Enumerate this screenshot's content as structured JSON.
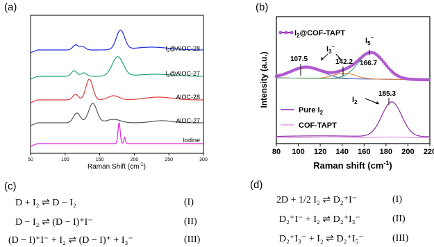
{
  "panels": {
    "a": {
      "label": "(a)",
      "xlabel": "Raman Shift (cm",
      "xlabel_sup": "-1",
      "xlabel_tail": ")",
      "xticks": [
        "50",
        "100",
        "150",
        "200",
        "250",
        "300"
      ],
      "series_labels": [
        {
          "text_pre": "I",
          "sub": "2",
          "text_post": "@AlOC-28",
          "color": "#1a2be0"
        },
        {
          "text_pre": "I",
          "sub": "2",
          "text_post": "@AlOC-27",
          "color": "#1fa86a"
        },
        {
          "text_pre": "AlOC-28",
          "sub": "",
          "text_post": "",
          "color": "#e03b3b"
        },
        {
          "text_pre": "AlOC-27",
          "sub": "",
          "text_post": "",
          "color": "#555555"
        },
        {
          "text_pre": "Iodine",
          "sub": "",
          "text_post": "",
          "color": "#e020e0"
        }
      ]
    },
    "b": {
      "label": "(b)",
      "ylabel": "Intensity (a.u.)",
      "xlabel": "Raman shift (cm",
      "xlabel_sup": "-1",
      "xlabel_tail": ")",
      "xticks": [
        "80",
        "100",
        "120",
        "140",
        "160",
        "180",
        "200",
        "220"
      ],
      "legend_top": {
        "pre": "I",
        "sub": "2",
        "post": "@COF-TAPT"
      },
      "legend_bottom": [
        {
          "pre": "Pure I",
          "sub": "2",
          "post": ""
        },
        {
          "pre": "COF-TAPT",
          "sub": "",
          "post": ""
        }
      ],
      "peaks": {
        "p1": "107.5",
        "p2": "142.2",
        "p3": "166.7",
        "p4": "185.3"
      },
      "peak_tags": {
        "i3": {
          "pre": "I",
          "sub": "3",
          "sup": "−"
        },
        "i5": {
          "pre": "I",
          "sub": "5",
          "sup": "−"
        },
        "i2": {
          "pre": "I",
          "sub": "2",
          "sup": ""
        }
      }
    },
    "c": {
      "label": "(c)",
      "equations": [
        {
          "lhs": "D + I₂",
          "rhs": "D − I₂",
          "num": "(I)"
        },
        {
          "lhs": "D − I₂",
          "rhs": "(D − I)⁺I⁻",
          "num": "(II)"
        },
        {
          "lhs": "(D − I)⁺I⁻ + I₂",
          "rhs": "(D − I)⁺ + I₃⁻",
          "num": "(III)"
        }
      ]
    },
    "d": {
      "label": "(d)",
      "equations": [
        {
          "lhs": "2D + 1/2 I₂",
          "rhs": "D₂⁺I⁻",
          "num": "(I)"
        },
        {
          "lhs": "D₂⁺I⁻ + I₂",
          "rhs": "D₂⁺I₃⁻",
          "num": "(II)"
        },
        {
          "lhs": "D₂⁺I₃⁻ + I₂",
          "rhs": "D₂⁺I₅⁻",
          "num": "(III)"
        }
      ]
    }
  },
  "colors": {
    "blue": "#1a2be0",
    "green": "#1fa86a",
    "red": "#e03b3b",
    "gray": "#555555",
    "magenta": "#e020e0",
    "purple": "#8a2aa0",
    "pink": "#e39ae3"
  }
}
